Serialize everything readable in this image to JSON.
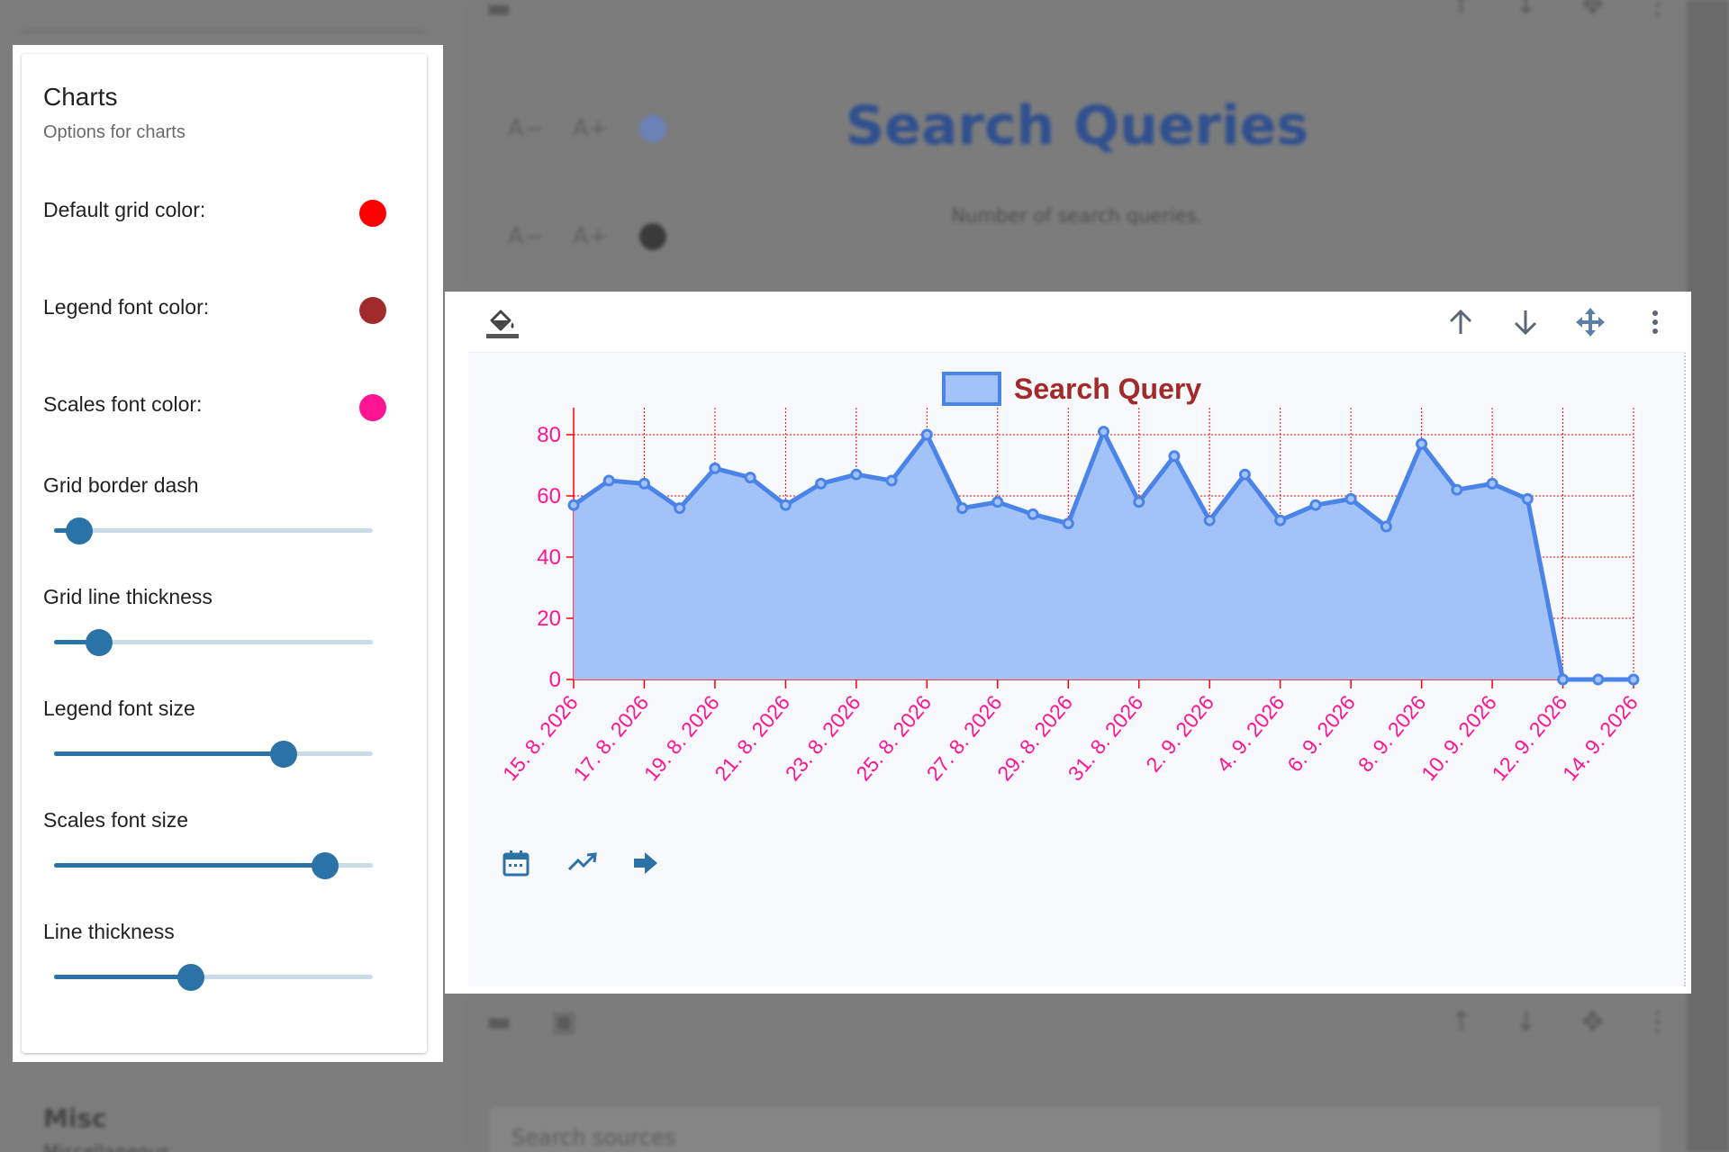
{
  "background": {
    "title": "Search Queries",
    "subtitle": "Number of search queries.",
    "font_decrease_label": "A−",
    "font_increase_label": "A+",
    "title_color_dot": "#6a82b8",
    "subtitle_color_dot": "#3a3a3a",
    "search_placeholder": "Search sources",
    "misc_title": "Misc",
    "misc_subtitle": "Miscellaneous"
  },
  "panel": {
    "title": "Charts",
    "subtitle": "Options for charts",
    "color_options": [
      {
        "label": "Default grid color:",
        "color": "#ff0000"
      },
      {
        "label": "Legend font color:",
        "color": "#a32a2a"
      },
      {
        "label": "Scales font color:",
        "color": "#ff1493"
      }
    ],
    "sliders": [
      {
        "label": "Grid border dash",
        "value": 0.08
      },
      {
        "label": "Grid line thickness",
        "value": 0.14
      },
      {
        "label": "Legend font size",
        "value": 0.72
      },
      {
        "label": "Scales font size",
        "value": 0.85
      },
      {
        "label": "Line thickness",
        "value": 0.43
      }
    ]
  },
  "card": {
    "toolbar_icons": [
      "paint-bucket-icon",
      "arrow-up-icon",
      "arrow-down-icon",
      "move-icon",
      "more-vertical-icon"
    ],
    "bottom_icons": [
      "calendar-icon",
      "trending-up-icon",
      "arrow-right-icon"
    ],
    "accent": "#2b72a6"
  },
  "chart_data": {
    "type": "area",
    "legend": "Search Query",
    "legend_position": "top",
    "grid": true,
    "grid_color": "#ff0000",
    "legend_color": "#a32a2a",
    "scales_color": "#ff1493",
    "line_color": "#4a84e8",
    "fill_color": "#a3c2f8",
    "ylim": [
      0,
      80
    ],
    "yticks": [
      0,
      20,
      40,
      60,
      80
    ],
    "x_labels": [
      "15. 8. 2026",
      "17. 8. 2026",
      "19. 8. 2026",
      "21. 8. 2026",
      "23. 8. 2026",
      "25. 8. 2026",
      "27. 8. 2026",
      "29. 8. 2026",
      "31. 8. 2026",
      "2. 9. 2026",
      "4. 9. 2026",
      "6. 9. 2026",
      "8. 9. 2026",
      "10. 9. 2026",
      "12. 9. 2026",
      "14. 9. 2026"
    ],
    "values": [
      57,
      65,
      64,
      56,
      69,
      66,
      57,
      64,
      67,
      65,
      80,
      56,
      58,
      54,
      51,
      81,
      58,
      73,
      52,
      67,
      52,
      57,
      59,
      50,
      77,
      62,
      64,
      59,
      0,
      0,
      0
    ]
  }
}
